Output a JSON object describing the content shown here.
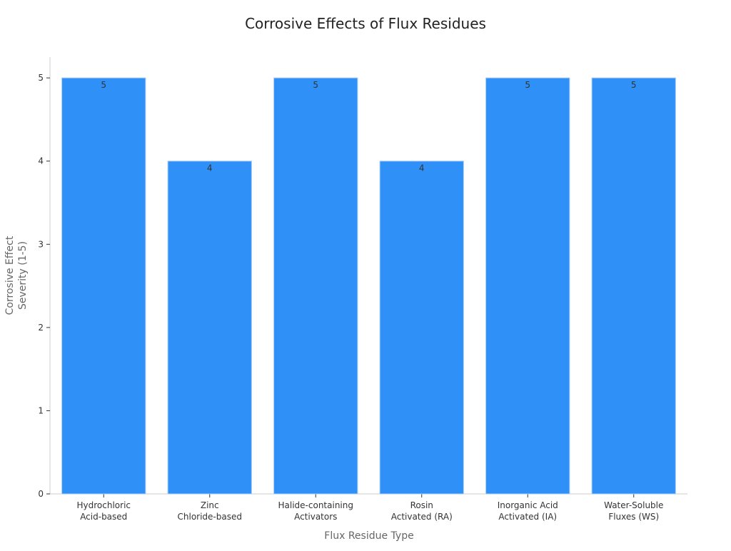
{
  "chart_data": {
    "type": "bar",
    "title": "Corrosive Effects of Flux Residues",
    "xlabel": "Flux Residue Type",
    "ylabel": "Corrosive Effect Severity (1-5)",
    "ylabel_lines": [
      "Corrosive Effect",
      "Severity (1-5)"
    ],
    "categories": [
      "Hydrochloric Acid-based",
      "Zinc Chloride-based",
      "Halide-containing Activators",
      "Rosin Activated (RA)",
      "Inorganic Acid Activated (IA)",
      "Water-Soluble Fluxes (WS)"
    ],
    "category_lines": [
      [
        "Hydrochloric",
        "Acid-based"
      ],
      [
        "Zinc",
        "Chloride-based"
      ],
      [
        "Halide-containing",
        "Activators"
      ],
      [
        "Rosin",
        "Activated (RA)"
      ],
      [
        "Inorganic Acid",
        "Activated (IA)"
      ],
      [
        "Water-Soluble",
        "Fluxes (WS)"
      ]
    ],
    "values": [
      5,
      4,
      5,
      4,
      5,
      5
    ],
    "ylim": [
      0,
      5.25
    ],
    "yticks": [
      0,
      1,
      2,
      3,
      4,
      5
    ],
    "grid": false,
    "data_labels": true,
    "bar_color": "#2F91F8",
    "bar_edge_color": "#A9CCF5"
  }
}
